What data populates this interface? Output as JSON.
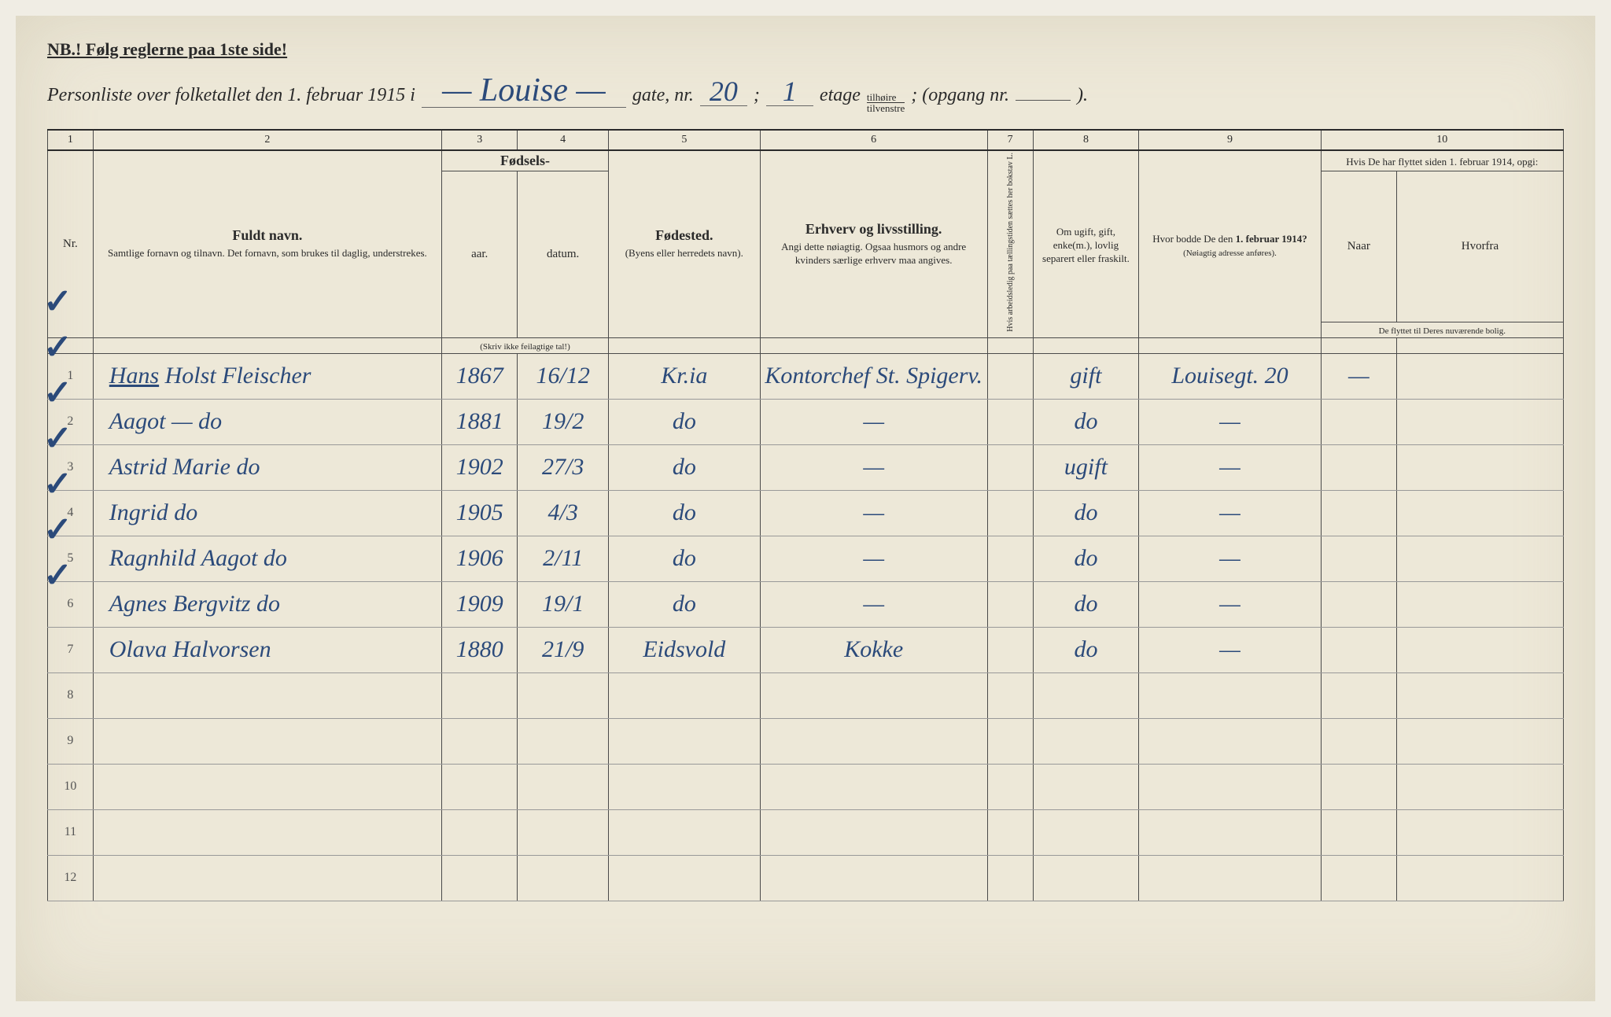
{
  "header": {
    "nb": "NB.! Følg reglerne paa 1ste side!",
    "title_prefix": "Personliste over folketallet den 1. februar 1915 i",
    "street": "— Louise —",
    "gate_label": "gate, nr.",
    "gate_nr": "20",
    "sep": ";",
    "etage_nr": "1",
    "etage_label": "etage",
    "frac_top": "tilhøire",
    "frac_bot": "tilvenstre",
    "opgang_label": "; (opgang nr.",
    "close": ")."
  },
  "columns": {
    "nums": [
      "1",
      "2",
      "3",
      "4",
      "5",
      "6",
      "7",
      "8",
      "9",
      "10"
    ],
    "nr": "Nr.",
    "name_main": "Fuldt navn.",
    "name_sub": "Samtlige fornavn og tilnavn. Det fornavn, som brukes til daglig, understrekes.",
    "birth_main": "Fødsels-",
    "birth_year": "aar.",
    "birth_date": "datum.",
    "birth_note": "(Skriv ikke feilagtige tal!)",
    "birthplace_main": "Fødested.",
    "birthplace_sub": "(Byens eller herredets navn).",
    "occ_main": "Erhverv og livsstilling.",
    "occ_sub": "Angi dette nøiagtig. Ogsaa husmors og andre kvinders særlige erhverv maa angives.",
    "col7": "Hvis arbeidsledig paa tællingstiden sættes her bokstav L.",
    "marital": "Om ugift, gift, enke(m.), lovlig separert eller fraskilt.",
    "addr_main": "Hvor bodde De den 1. februar 1914?",
    "addr_sub": "(Nøiagtig adresse anføres).",
    "moved_main": "Hvis De har flyttet siden 1. februar 1914, opgi:",
    "moved_a": "Naar",
    "moved_b": "Hvorfra",
    "moved_sub": "De flyttet til Deres nuværende bolig."
  },
  "rows": [
    {
      "nr": "1",
      "name": "Hans Holst Fleischer",
      "year": "1867",
      "date": "16/12",
      "place": "Kr.ia",
      "occ": "Kontorchef St. Spigerv.",
      "mar": "gift",
      "addr": "Louisegt. 20",
      "m1": "—",
      "m2": ""
    },
    {
      "nr": "2",
      "name": "Aagot — do",
      "year": "1881",
      "date": "19/2",
      "place": "do",
      "occ": "—",
      "mar": "do",
      "addr": "—",
      "m1": "",
      "m2": ""
    },
    {
      "nr": "3",
      "name": "Astrid Marie do",
      "year": "1902",
      "date": "27/3",
      "place": "do",
      "occ": "—",
      "mar": "ugift",
      "addr": "—",
      "m1": "",
      "m2": ""
    },
    {
      "nr": "4",
      "name": "Ingrid do",
      "year": "1905",
      "date": "4/3",
      "place": "do",
      "occ": "—",
      "mar": "do",
      "addr": "—",
      "m1": "",
      "m2": ""
    },
    {
      "nr": "5",
      "name": "Ragnhild Aagot do",
      "year": "1906",
      "date": "2/11",
      "place": "do",
      "occ": "—",
      "mar": "do",
      "addr": "—",
      "m1": "",
      "m2": ""
    },
    {
      "nr": "6",
      "name": "Agnes Bergvitz do",
      "year": "1909",
      "date": "19/1",
      "place": "do",
      "occ": "—",
      "mar": "do",
      "addr": "—",
      "m1": "",
      "m2": ""
    },
    {
      "nr": "7",
      "name": "Olava Halvorsen",
      "year": "1880",
      "date": "21/9",
      "place": "Eidsvold",
      "occ": "Kokke",
      "mar": "do",
      "addr": "—",
      "m1": "",
      "m2": ""
    },
    {
      "nr": "8",
      "name": "",
      "year": "",
      "date": "",
      "place": "",
      "occ": "",
      "mar": "",
      "addr": "",
      "m1": "",
      "m2": ""
    },
    {
      "nr": "9",
      "name": "",
      "year": "",
      "date": "",
      "place": "",
      "occ": "",
      "mar": "",
      "addr": "",
      "m1": "",
      "m2": ""
    },
    {
      "nr": "10",
      "name": "",
      "year": "",
      "date": "",
      "place": "",
      "occ": "",
      "mar": "",
      "addr": "",
      "m1": "",
      "m2": ""
    },
    {
      "nr": "11",
      "name": "",
      "year": "",
      "date": "",
      "place": "",
      "occ": "",
      "mar": "",
      "addr": "",
      "m1": "",
      "m2": ""
    },
    {
      "nr": "12",
      "name": "",
      "year": "",
      "date": "",
      "place": "",
      "occ": "",
      "mar": "",
      "addr": "",
      "m1": "",
      "m2": ""
    }
  ],
  "styling": {
    "paper_bg": "#ede8d8",
    "ink_print": "#2a2a2a",
    "ink_handwritten": "#2b4a7a",
    "border": "#4a4a4a",
    "row_border": "#999",
    "print_font": "Georgia",
    "hand_font": "Brush Script MT",
    "title_fontsize": 24,
    "hand_fontsize": 30
  }
}
